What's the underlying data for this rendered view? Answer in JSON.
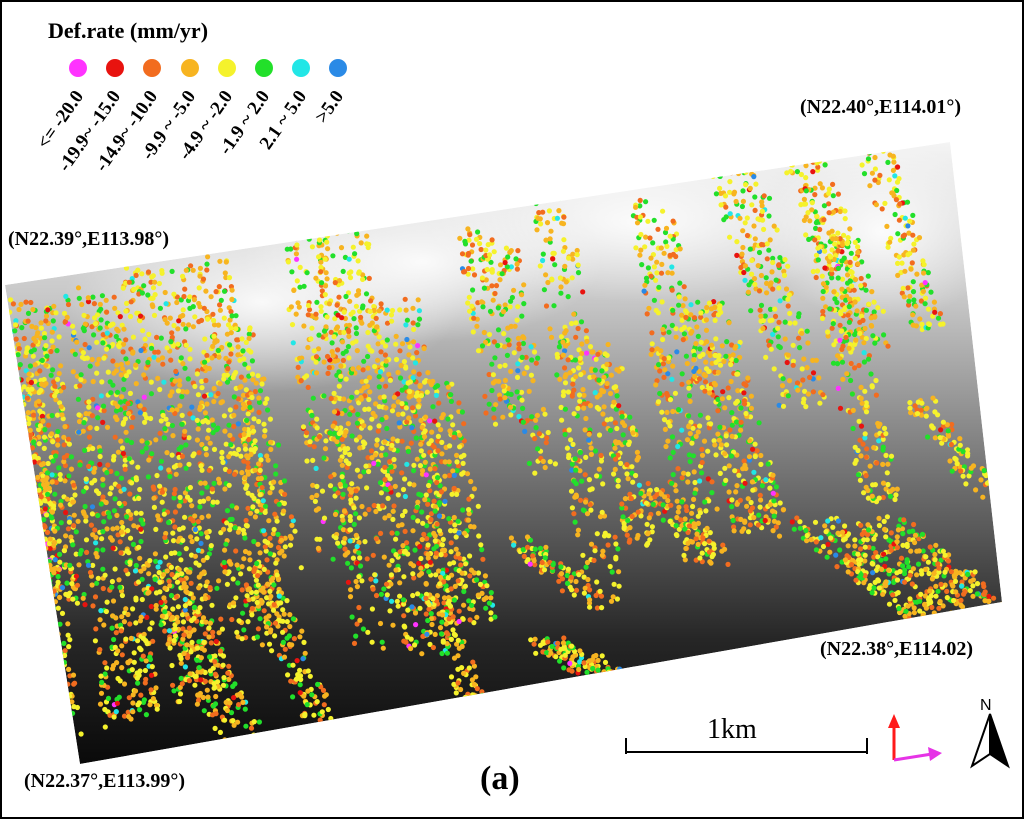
{
  "legend": {
    "title": "Def.rate (mm/yr)",
    "classes": [
      {
        "label": "<= -20.0",
        "color": "#ff33ff"
      },
      {
        "label": "-19.9~ -15.0",
        "color": "#e8130f"
      },
      {
        "label": "-14.9~ -10.0",
        "color": "#f26c1f"
      },
      {
        "label": "-9.9 ~ -5.0",
        "color": "#f7b420"
      },
      {
        "label": "-4.9 ~ -2.0",
        "color": "#f5f22c"
      },
      {
        "label": "-1.9 ~ 2.0",
        "color": "#22e02a"
      },
      {
        "label": "2.1 ~ 5.0",
        "color": "#22e6e6"
      },
      {
        "label": ">5.0",
        "color": "#2a8ae6"
      }
    ]
  },
  "corners": {
    "top_right": "(N22.40°,E114.01°)",
    "left_top": "(N22.39°,E113.98°)",
    "bottom_right": "(N22.38°,E114.02)",
    "bottom_left": "(N22.37°,E113.99°)"
  },
  "scale_bar": {
    "label": "1km"
  },
  "north_arrow": {
    "label": "N"
  },
  "panel_label": "(a)",
  "arrows": {
    "range_color": "#ff1a1a",
    "azimuth_color": "#e633e6"
  }
}
